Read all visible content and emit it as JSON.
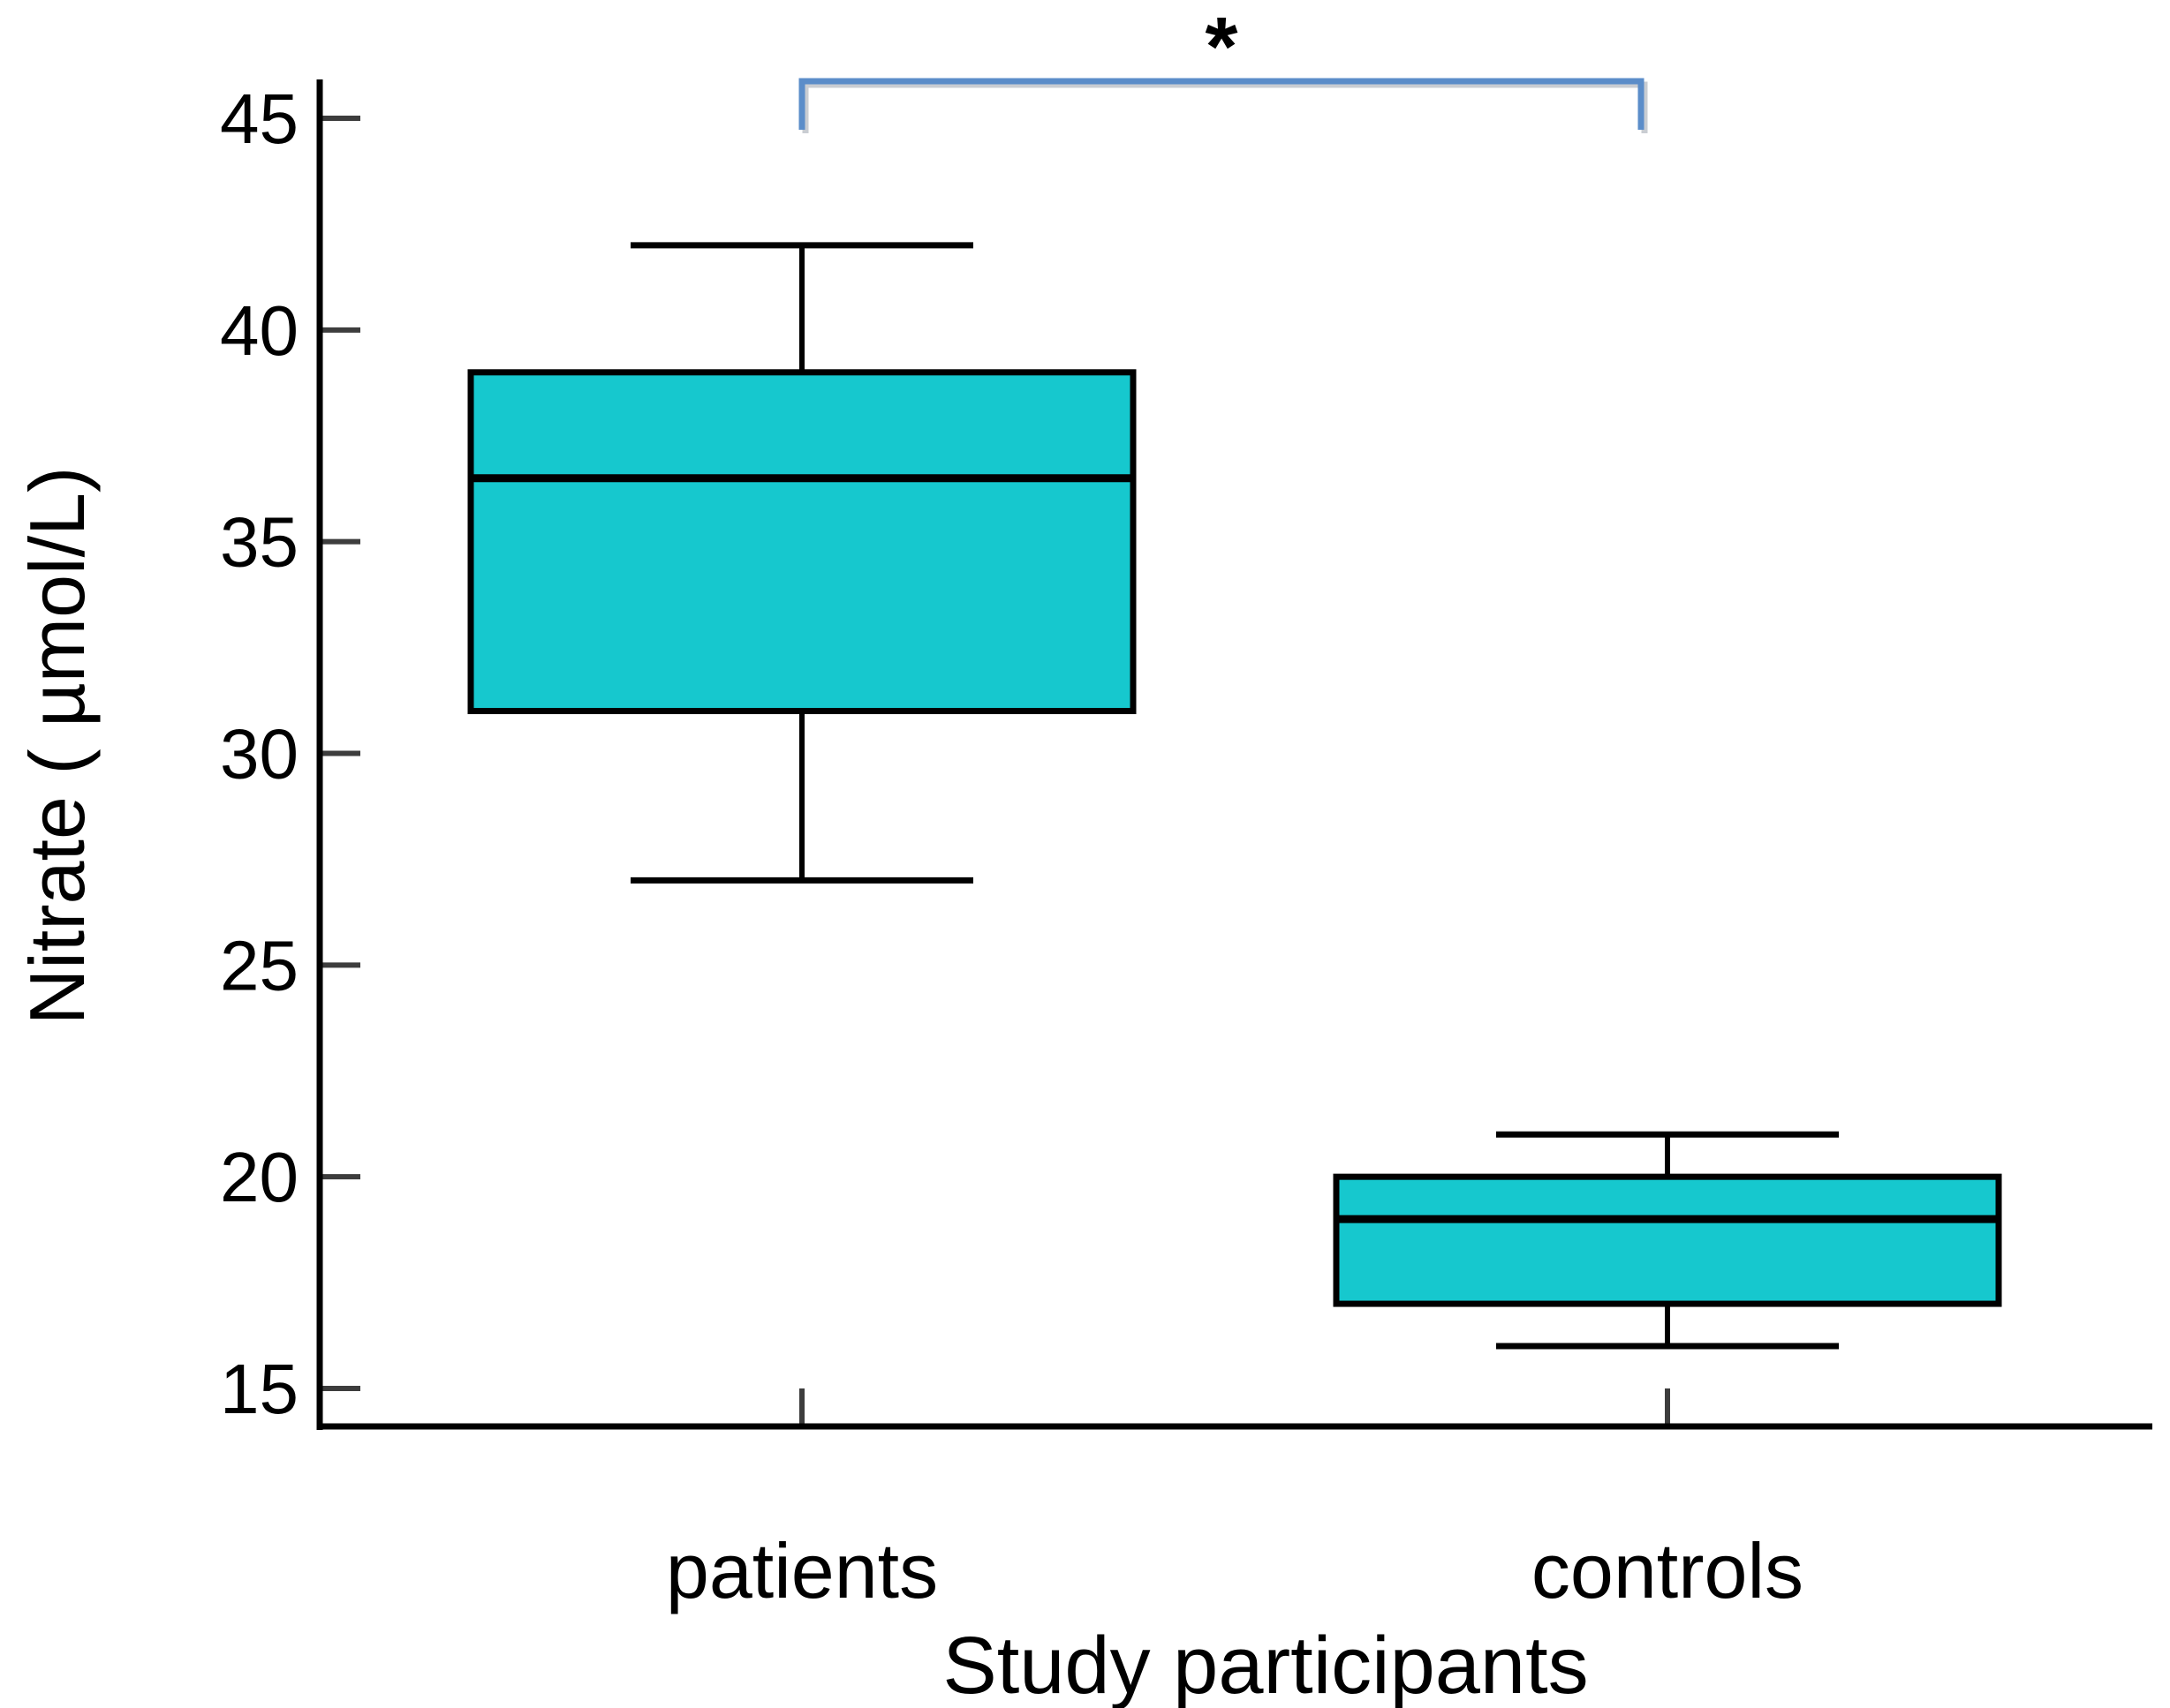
{
  "figure": {
    "background": "#ffffff"
  },
  "chart_data": {
    "type": "boxplot",
    "title": "",
    "xlabel": "Study participants",
    "ylabel": "Nitrate ( µmol/L)",
    "categories": [
      "patients",
      "controls"
    ],
    "y_ticks": [
      45,
      40,
      35,
      30,
      25,
      20,
      15
    ],
    "ylim": [
      14,
      46
    ],
    "grid": false,
    "legend": null,
    "series": [
      {
        "name": "patients",
        "min": 27,
        "q1": 31,
        "median": 36.5,
        "q3": 39,
        "max": 42
      },
      {
        "name": "controls",
        "min": 16,
        "q1": 17,
        "median": 19,
        "q3": 20,
        "max": 21
      }
    ],
    "colors": {
      "box_fill": "#16c8ce",
      "box_stroke": "#000000",
      "axis": "#000000",
      "tick": "#3d3d3d",
      "bracket": "#5b8dc9",
      "bracket_shadow": "#c9cdd2"
    },
    "annotation": {
      "type": "significance-bracket",
      "between": [
        "patients",
        "controls"
      ],
      "label": "*",
      "label_color": "#000000"
    }
  }
}
